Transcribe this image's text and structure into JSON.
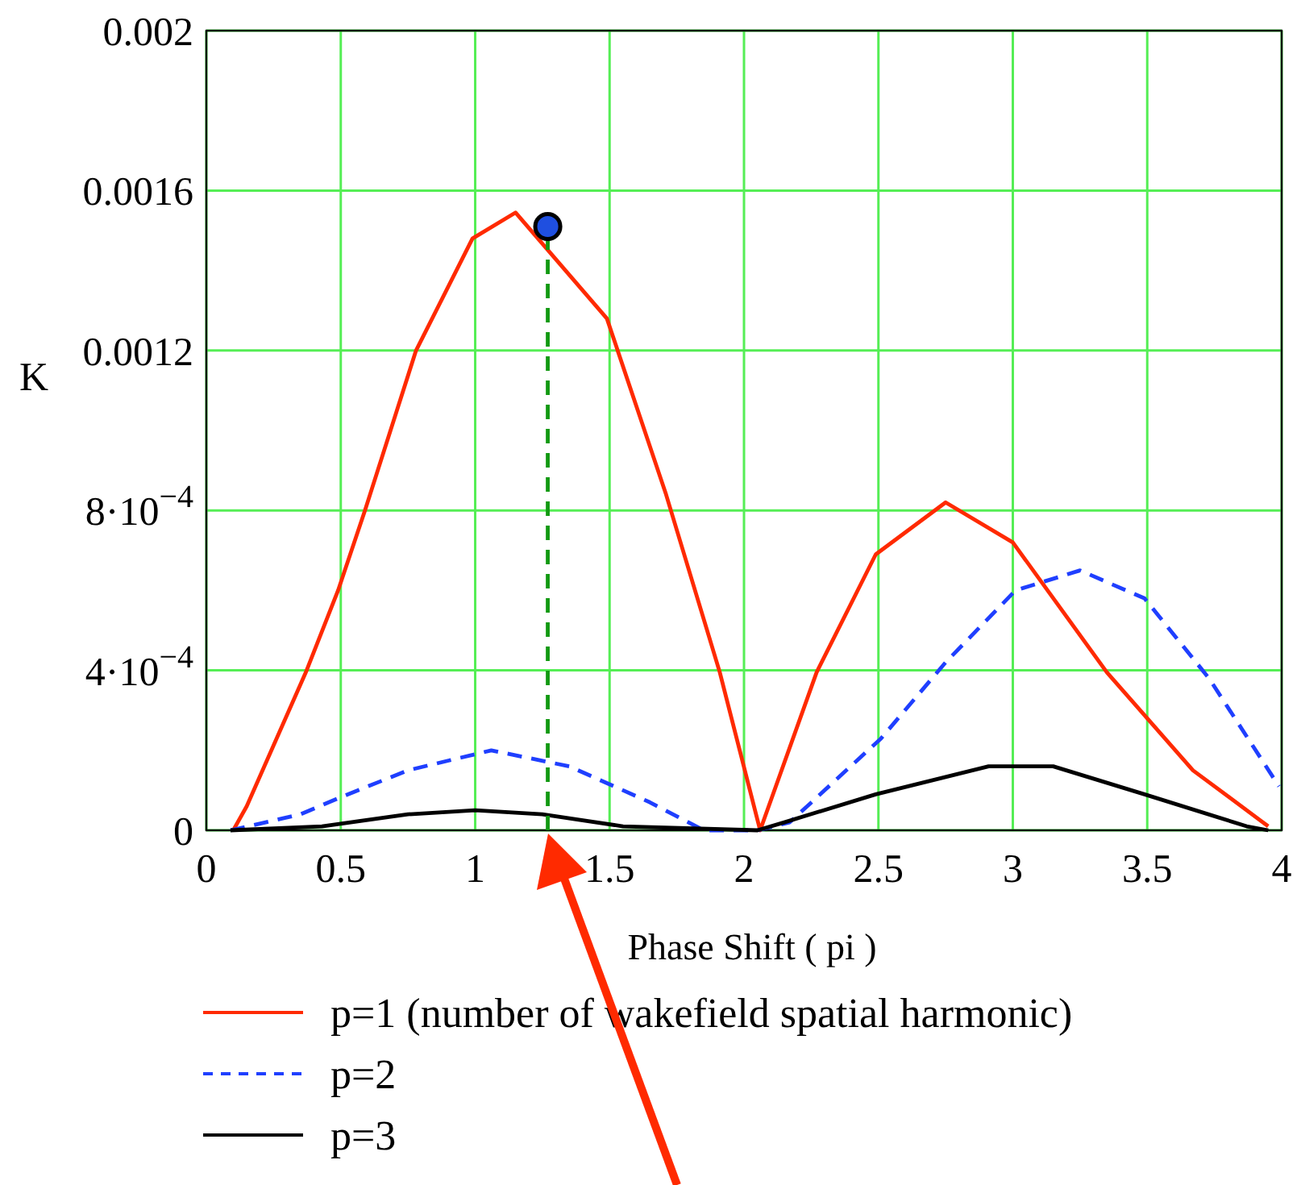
{
  "chart_data": {
    "type": "line",
    "xlabel": "Phase Shift ( pi )",
    "ylabel": "K",
    "xlim": [
      0,
      4
    ],
    "xticks": [
      0,
      0.5,
      1,
      1.5,
      2,
      2.5,
      3,
      3.5,
      4
    ],
    "ylim": [
      0,
      0.002
    ],
    "yticks": [
      0,
      {
        "value": 0.0004,
        "label": "4·10$^{−4}$"
      },
      {
        "value": 0.0008,
        "label": "8·10$^{−4}$"
      },
      0.0012,
      0.0016,
      0.002
    ],
    "grid": true,
    "legend": "bottom",
    "series": [
      {
        "name": "p=1 (number of wakefield spatial harmonic)",
        "color": "#ff2a00",
        "line_style": "solid",
        "x": [
          0.1,
          0.15,
          0.37,
          0.49,
          0.59,
          0.78,
          0.99,
          1.15,
          1.49,
          1.71,
          1.91,
          2.06,
          2.27,
          2.49,
          2.75,
          3.0,
          3.35,
          3.67,
          3.95
        ],
        "values": [
          0,
          6e-05,
          0.000395,
          0.0006,
          0.0008,
          0.0012,
          0.00148,
          0.001545,
          0.00128,
          0.00084,
          0.000395,
          0,
          0.000395,
          0.00069,
          0.00082,
          0.00072,
          0.000395,
          0.00015,
          1e-05
        ]
      },
      {
        "name": "p=2",
        "color": "#1f3fff",
        "line_style": "dashed",
        "x": [
          0.09,
          0.35,
          0.49,
          0.75,
          1.06,
          1.35,
          1.65,
          1.85,
          2.05,
          2.17,
          2.51,
          2.75,
          3.01,
          3.25,
          3.49,
          3.73,
          3.99
        ],
        "values": [
          0,
          4e-05,
          8e-05,
          0.00015,
          0.0002,
          0.00016,
          7e-05,
          0,
          0,
          2e-05,
          0.00023,
          0.00042,
          0.0006,
          0.00065,
          0.00058,
          0.00038,
          0.00011
        ]
      },
      {
        "name": "p=3",
        "color": "#000000",
        "line_style": "solid",
        "x": [
          0.09,
          0.43,
          0.75,
          1.0,
          1.25,
          1.55,
          2.05,
          2.15,
          2.49,
          2.91,
          3.15,
          3.49,
          3.87,
          3.95
        ],
        "values": [
          0,
          1e-05,
          4e-05,
          5e-05,
          4e-05,
          1e-05,
          0,
          2e-05,
          9e-05,
          0.00016,
          0.00016,
          9e-05,
          1e-05,
          0
        ]
      },
      {
        "type": "line",
        "color": "#119911",
        "line_style": "dashed",
        "x": [
          1.27,
          1.27
        ],
        "values": [
          0,
          0.00151
        ]
      },
      {
        "type": "scatter",
        "color": "#1f4fe0",
        "marker": "circle",
        "x": [
          1.27
        ],
        "values": [
          0.00151
        ]
      }
    ]
  }
}
